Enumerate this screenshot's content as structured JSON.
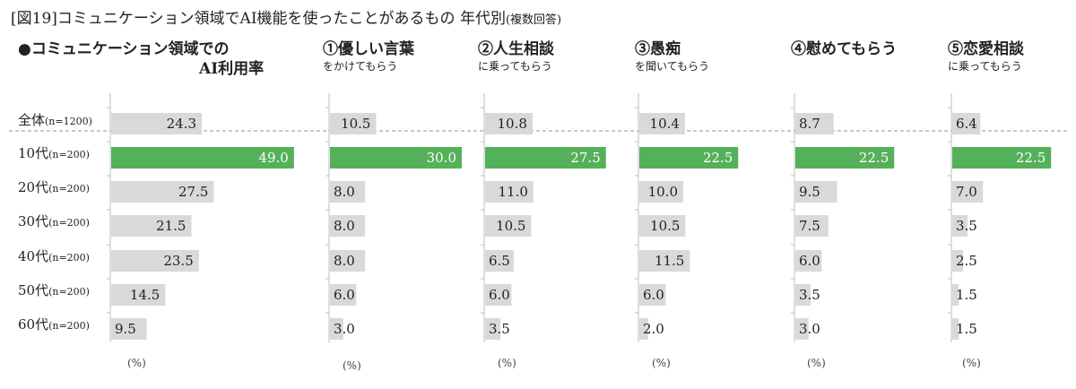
{
  "title": {
    "main": "[図19]コミュニケーション領域でAI機能を使ったことがあるもの 年代別",
    "note": "(複数回答)"
  },
  "panels": [
    {
      "title_line1": "●コミュニケーション領域での",
      "title_line2": "AI利用率",
      "unit": "(%)"
    },
    {
      "title_line1": "①優しい言葉",
      "title_line2": "をかけてもらう",
      "unit": "(%)"
    },
    {
      "title_line1": "②人生相談",
      "title_line2": "に乗ってもらう",
      "unit": "(%)"
    },
    {
      "title_line1": "③愚痴",
      "title_line2": "を聞いてもらう",
      "unit": "(%)"
    },
    {
      "title_line1": "④慰めてもらう",
      "title_line2": "",
      "unit": "(%)"
    },
    {
      "title_line1": "⑤恋愛相談",
      "title_line2": "に乗ってもらう",
      "unit": "(%)"
    }
  ],
  "rows": [
    {
      "label": "全体",
      "n": "(n=1200)"
    },
    {
      "label": "10代",
      "n": "(n=200)"
    },
    {
      "label": "20代",
      "n": "(n=200)"
    },
    {
      "label": "30代",
      "n": "(n=200)"
    },
    {
      "label": "40代",
      "n": "(n=200)"
    },
    {
      "label": "50代",
      "n": "(n=200)"
    },
    {
      "label": "60代",
      "n": "(n=200)"
    }
  ],
  "colors": {
    "bar": "#d9d9d9",
    "highlight": "#55b05a",
    "axis": "#bfbfbf",
    "separator": "#8a8fa8"
  },
  "chart_data": [
    {
      "type": "bar",
      "orientation": "horizontal",
      "title": "●コミュニケーション領域での AI利用率",
      "categories": [
        "全体(n=1200)",
        "10代(n=200)",
        "20代(n=200)",
        "30代(n=200)",
        "40代(n=200)",
        "50代(n=200)",
        "60代(n=200)"
      ],
      "values": [
        24.3,
        49.0,
        27.5,
        21.5,
        23.5,
        14.5,
        9.5
      ],
      "labels": [
        "24.3",
        "49.0",
        "27.5",
        "21.5",
        "23.5",
        "14.5",
        "9.5"
      ],
      "highlight_index": 1
    },
    {
      "type": "bar",
      "orientation": "horizontal",
      "title": "①優しい言葉 をかけてもらう",
      "categories": [
        "全体(n=1200)",
        "10代(n=200)",
        "20代(n=200)",
        "30代(n=200)",
        "40代(n=200)",
        "50代(n=200)",
        "60代(n=200)"
      ],
      "values": [
        10.5,
        30.0,
        8.0,
        8.0,
        8.0,
        6.0,
        3.0
      ],
      "labels": [
        "10.5",
        "30.0",
        "8.0",
        "8.0",
        "8.0",
        "6.0",
        "3.0"
      ],
      "highlight_index": 1
    },
    {
      "type": "bar",
      "orientation": "horizontal",
      "title": "②人生相談 に乗ってもらう",
      "categories": [
        "全体(n=1200)",
        "10代(n=200)",
        "20代(n=200)",
        "30代(n=200)",
        "40代(n=200)",
        "50代(n=200)",
        "60代(n=200)"
      ],
      "values": [
        10.8,
        27.5,
        11.0,
        10.5,
        6.5,
        6.0,
        3.5
      ],
      "labels": [
        "10.8",
        "27.5",
        "11.0",
        "10.5",
        "6.5",
        "6.0",
        "3.5"
      ],
      "highlight_index": 1
    },
    {
      "type": "bar",
      "orientation": "horizontal",
      "title": "③愚痴 を聞いてもらう",
      "categories": [
        "全体(n=1200)",
        "10代(n=200)",
        "20代(n=200)",
        "30代(n=200)",
        "40代(n=200)",
        "50代(n=200)",
        "60代(n=200)"
      ],
      "values": [
        10.4,
        22.5,
        10.0,
        10.5,
        11.5,
        6.0,
        2.0
      ],
      "labels": [
        "10.4",
        "22.5",
        "10.0",
        "10.5",
        "11.5",
        "6.0",
        "2.0"
      ],
      "highlight_index": 1
    },
    {
      "type": "bar",
      "orientation": "horizontal",
      "title": "④慰めてもらう",
      "categories": [
        "全体(n=1200)",
        "10代(n=200)",
        "20代(n=200)",
        "30代(n=200)",
        "40代(n=200)",
        "50代(n=200)",
        "60代(n=200)"
      ],
      "values": [
        8.7,
        22.5,
        9.5,
        7.5,
        6.0,
        3.5,
        3.0
      ],
      "labels": [
        "8.7",
        "22.5",
        "9.5",
        "7.5",
        "6.0",
        "3.5",
        "3.0"
      ],
      "highlight_index": 1
    },
    {
      "type": "bar",
      "orientation": "horizontal",
      "title": "⑤恋愛相談 に乗ってもらう",
      "categories": [
        "全体(n=1200)",
        "10代(n=200)",
        "20代(n=200)",
        "30代(n=200)",
        "40代(n=200)",
        "50代(n=200)",
        "60代(n=200)"
      ],
      "values": [
        6.4,
        22.5,
        7.0,
        3.5,
        2.5,
        1.5,
        1.5
      ],
      "labels": [
        "6.4",
        "22.5",
        "7.0",
        "3.5",
        "2.5",
        "1.5",
        "1.5"
      ],
      "highlight_index": 1
    }
  ]
}
